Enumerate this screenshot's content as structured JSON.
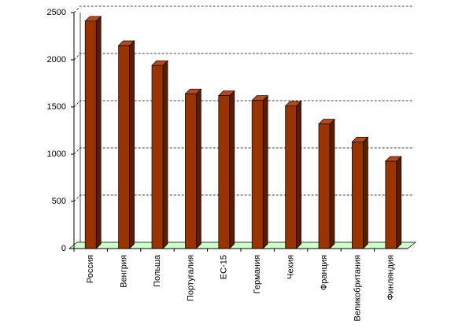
{
  "chart_data": {
    "type": "bar3d",
    "categories": [
      "Россия",
      "Венгрия",
      "Польша",
      "Португалия",
      "ЕС-15",
      "Германия",
      "Чехия",
      "Франция",
      "Великобритания",
      "Финляндия"
    ],
    "values": [
      2410,
      2150,
      1940,
      1640,
      1620,
      1570,
      1510,
      1320,
      1130,
      925
    ],
    "color": "#993300",
    "ylim": [
      0,
      2500
    ],
    "yticks": [
      0,
      500,
      1000,
      1500,
      2000,
      2500
    ],
    "grid": true
  }
}
